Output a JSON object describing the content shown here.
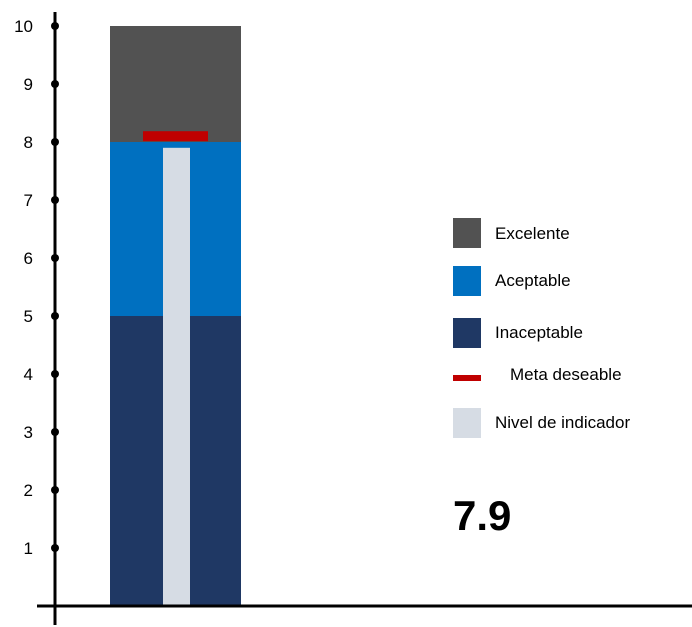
{
  "chart_data": {
    "type": "bar",
    "title": "",
    "xlabel": "",
    "ylabel": "",
    "ylim": [
      0,
      10
    ],
    "yticks": [
      1,
      2,
      3,
      4,
      5,
      6,
      7,
      8,
      9,
      10
    ],
    "grid": false,
    "legend_position": "right",
    "bands": [
      {
        "name": "Inaceptable",
        "from": 0,
        "to": 5,
        "color": "#1F3864"
      },
      {
        "name": "Aceptable",
        "from": 5,
        "to": 8,
        "color": "#0070C0"
      },
      {
        "name": "Excelente",
        "from": 8,
        "to": 10,
        "color": "#525252"
      }
    ],
    "target": {
      "name": "Meta deseable",
      "value": 8.1,
      "color": "#C00000"
    },
    "indicator": {
      "name": "Nivel de indicador",
      "value": 7.9,
      "color": "#D6DCE4"
    }
  },
  "legend": {
    "items": [
      {
        "label": "Excelente",
        "color": "#525252",
        "shape": "square"
      },
      {
        "label": "Aceptable",
        "color": "#0070C0",
        "shape": "square"
      },
      {
        "label": "Inaceptable",
        "color": "#1F3864",
        "shape": "square"
      },
      {
        "label": "Meta deseable",
        "color": "#C00000",
        "shape": "line"
      },
      {
        "label": "Nivel de indicador",
        "color": "#D6DCE4",
        "shape": "square"
      }
    ]
  },
  "indicator_value": "7.9"
}
